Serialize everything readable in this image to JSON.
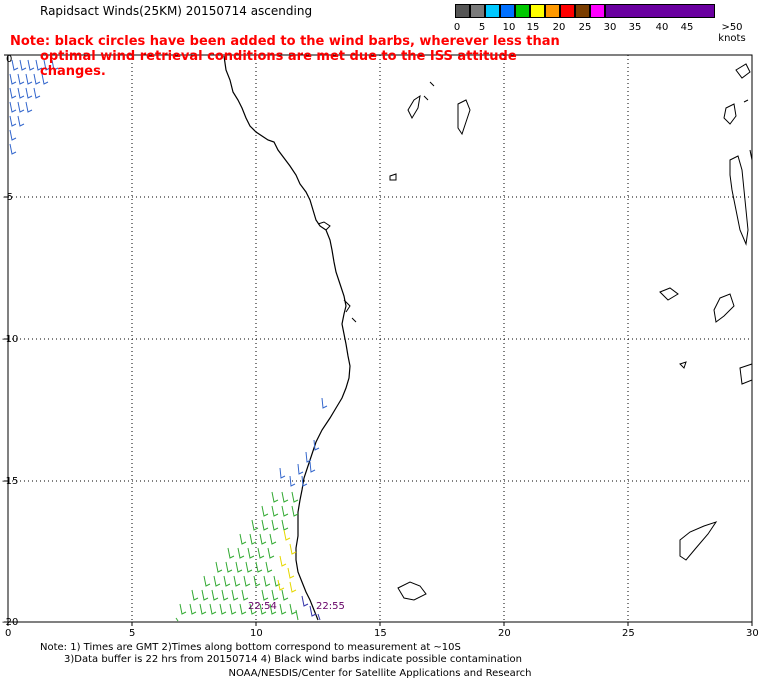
{
  "title": "Rapidsact Winds(25KM) 20150714 ascending",
  "note_line1": "Note: black circles have been added to the wind barbs, wherever less than",
  "note_line2": "optimal wind retrieval conditions are met due to the ISS attitude changes.",
  "legend": {
    "labels": [
      "0",
      "5",
      "10",
      "15",
      "20",
      "25",
      "30",
      "35",
      "40",
      "45",
      ">50 knots"
    ],
    "colors": [
      "#555555",
      "#7a7a7a",
      "#00c8ff",
      "#0070ff",
      "#00c800",
      "#ffff00",
      "#ff9900",
      "#ff0000",
      "#7a3d00",
      "#ff00ff",
      "#6a00a0"
    ]
  },
  "axes": {
    "x_ticks": [
      "0",
      "5",
      "10",
      "15",
      "20",
      "25",
      "30"
    ],
    "y_ticks": [
      "0",
      "-5",
      "-10",
      "-15",
      "-20"
    ]
  },
  "pass_times": [
    "22:54",
    "22:55"
  ],
  "footer_line1": "Note: 1) Times are GMT 2)Times along bottom correspond to measurement at ~10S",
  "footer_line2": "3)Data buffer is 22 hrs from 20150714 4) Black wind barbs indicate possible contamination",
  "credit": "NOAA/NESDIS/Center for Satellite Applications and Research"
}
